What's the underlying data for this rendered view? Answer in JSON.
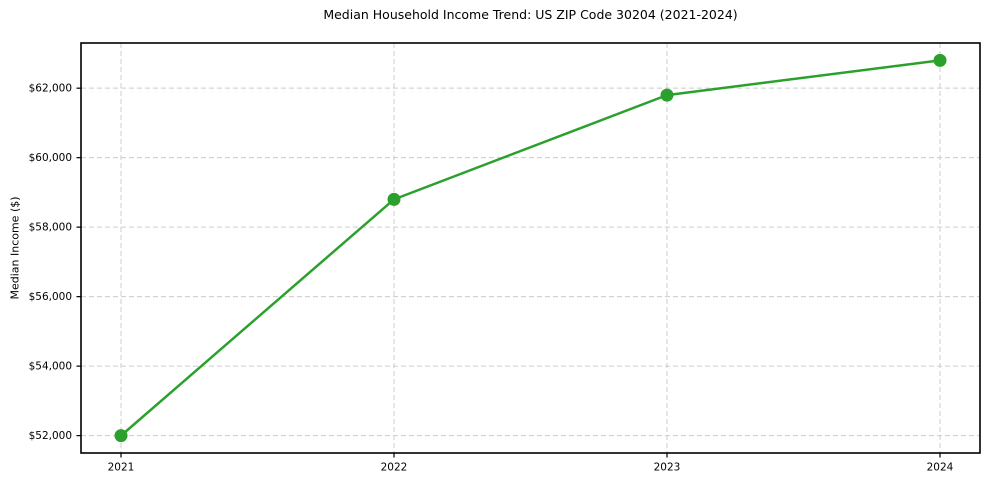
{
  "chart_data": {
    "type": "line",
    "title": "Median Household Income Trend: US ZIP Code 30204 (2021-2024)",
    "xlabel": "",
    "ylabel": "Median Income ($)",
    "categories": [
      "2021",
      "2022",
      "2023",
      "2024"
    ],
    "series": [
      {
        "name": "Median Household Income",
        "values": [
          52000,
          58800,
          61800,
          62800
        ]
      }
    ],
    "yticks": [
      {
        "value": 52000,
        "label": "$52,000"
      },
      {
        "value": 54000,
        "label": "$54,000"
      },
      {
        "value": 56000,
        "label": "$56,000"
      },
      {
        "value": 58000,
        "label": "$58,000"
      },
      {
        "value": 60000,
        "label": "$60,000"
      },
      {
        "value": 62000,
        "label": "$62,000"
      }
    ],
    "ylim": [
      51500,
      63300
    ],
    "grid": true,
    "grid_style": "dashed",
    "legend_position": "none",
    "marker": "circle",
    "colors": {
      "line": "#2ca02c",
      "marker": "#2ca02c",
      "grid": "#cccccc",
      "frame": "#000000",
      "background": "#ffffff",
      "text": "#000000"
    }
  }
}
